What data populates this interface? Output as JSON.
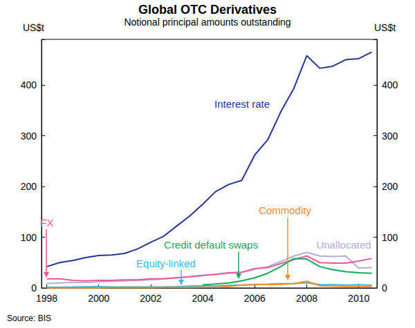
{
  "chart_data": {
    "type": "line",
    "title": "Global OTC Derivatives",
    "subtitle": "Notional principal amounts outstanding",
    "y_label": "US$t",
    "y2_label": "US$t",
    "source": "Source: BIS",
    "x": [
      1998.0,
      1998.5,
      1999.0,
      1999.5,
      2000.0,
      2000.5,
      2001.0,
      2001.5,
      2002.0,
      2002.5,
      2003.0,
      2003.5,
      2004.0,
      2004.5,
      2005.0,
      2005.5,
      2006.0,
      2006.5,
      2007.0,
      2007.5,
      2008.0,
      2008.5,
      2009.0,
      2009.5,
      2010.0,
      2010.5
    ],
    "xlim": [
      1997.8,
      2010.7
    ],
    "xticks": [
      1998,
      2000,
      2002,
      2004,
      2006,
      2008,
      2010
    ],
    "ylim": [
      0,
      490
    ],
    "yticks": [
      0,
      100,
      200,
      300,
      400
    ],
    "y2lim": [
      0,
      490
    ],
    "y2ticks": [
      0,
      100,
      200,
      300,
      400
    ],
    "grid": false,
    "series": [
      {
        "name": "Unallocated",
        "color": "#b3acd9",
        "values": [
          9,
          10,
          11,
          11,
          12,
          13,
          14,
          15,
          16,
          18,
          20,
          22,
          24,
          27,
          29,
          31,
          37,
          42,
          52,
          63,
          70,
          63,
          62,
          63,
          39,
          40
        ]
      },
      {
        "name": "FX",
        "color": "#e8579b",
        "values": [
          18,
          18,
          15,
          14,
          15,
          15,
          16,
          16,
          18,
          18,
          20,
          22,
          25,
          27,
          30,
          31,
          38,
          40,
          48,
          56,
          63,
          50,
          49,
          49,
          53,
          58
        ]
      },
      {
        "name": "Equity-linked",
        "color": "#3cb8e6",
        "values": [
          1.3,
          1.5,
          1.9,
          2.5,
          2.6,
          1.9,
          2.0,
          1.9,
          2.2,
          2.3,
          2.8,
          3.8,
          4.5,
          4.4,
          5.1,
          5.8,
          6.8,
          7.5,
          8.6,
          8.5,
          10.2,
          6.5,
          6.6,
          5.9,
          6.5,
          5.6
        ]
      },
      {
        "name": "Commodity",
        "color": "#f58a1f",
        "values": [
          0.4,
          0.4,
          0.4,
          0.4,
          0.5,
          0.7,
          0.6,
          0.6,
          0.8,
          0.9,
          1.0,
          1.0,
          1.3,
          1.4,
          3.0,
          5.4,
          6.4,
          6.9,
          7.1,
          8.5,
          13.2,
          4.4,
          3.7,
          2.9,
          2.9,
          2.9
        ]
      },
      {
        "name": "Credit default swaps",
        "color": "#16a85a",
        "values": [
          null,
          null,
          null,
          null,
          null,
          null,
          null,
          null,
          null,
          null,
          null,
          null,
          6,
          8,
          10,
          14,
          20,
          29,
          42,
          58,
          57,
          42,
          36,
          32,
          30,
          29
        ]
      },
      {
        "name": "Interest rate",
        "color": "#22349a",
        "values": [
          42,
          50,
          54,
          60,
          64,
          65,
          68,
          77,
          90,
          102,
          122,
          142,
          165,
          190,
          204,
          212,
          262,
          292,
          347,
          393,
          458,
          433,
          437,
          450,
          452,
          465
        ]
      }
    ]
  }
}
